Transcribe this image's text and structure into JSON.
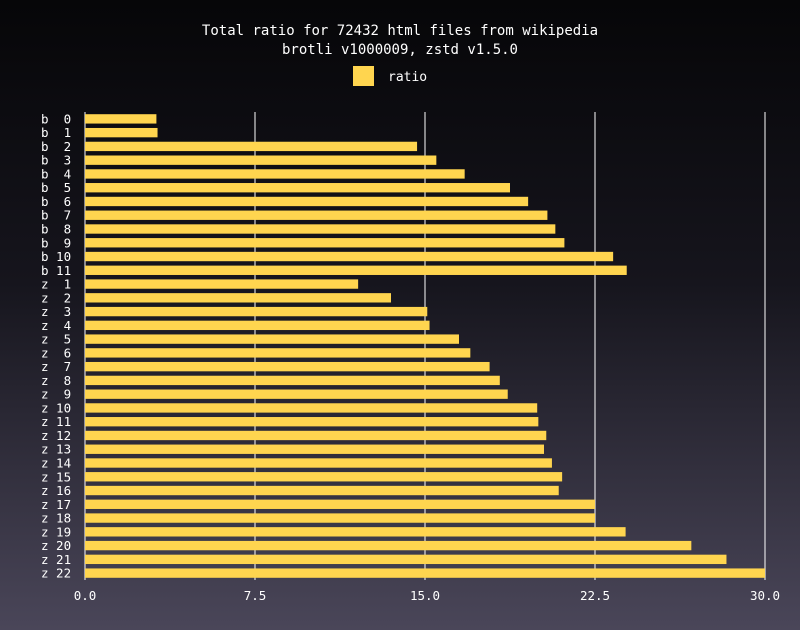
{
  "chart_data": {
    "type": "bar",
    "orientation": "horizontal",
    "title": "Total ratio for 72432 html files from wikipedia",
    "subtitle": "brotli v1000009, zstd v1.5.0",
    "legend": {
      "label": "ratio",
      "position": "top-center"
    },
    "bar_color": "#ffd54f",
    "xlim": [
      0,
      30
    ],
    "xticks": [
      "0.0",
      "7.5",
      "15.0",
      "22.5",
      "30.0"
    ],
    "grid": true,
    "categories": [
      "b  0",
      "b  1",
      "b  2",
      "b  3",
      "b  4",
      "b  5",
      "b  6",
      "b  7",
      "b  8",
      "b  9",
      "b 10",
      "b 11",
      "z  1",
      "z  2",
      "z  3",
      "z  4",
      "z  5",
      "z  6",
      "z  7",
      "z  8",
      "z  9",
      "z 10",
      "z 11",
      "z 12",
      "z 13",
      "z 14",
      "z 15",
      "z 16",
      "z 17",
      "z 18",
      "z 19",
      "z 20",
      "z 21",
      "z 22"
    ],
    "values": [
      3.15,
      3.2,
      14.65,
      15.5,
      16.75,
      18.75,
      19.55,
      20.4,
      20.75,
      21.15,
      23.3,
      23.9,
      12.05,
      13.5,
      15.1,
      15.2,
      16.5,
      17.0,
      17.85,
      18.3,
      18.65,
      19.95,
      20.0,
      20.35,
      20.25,
      20.6,
      21.05,
      20.9,
      22.5,
      22.5,
      23.85,
      26.75,
      28.3,
      30.0
    ]
  }
}
